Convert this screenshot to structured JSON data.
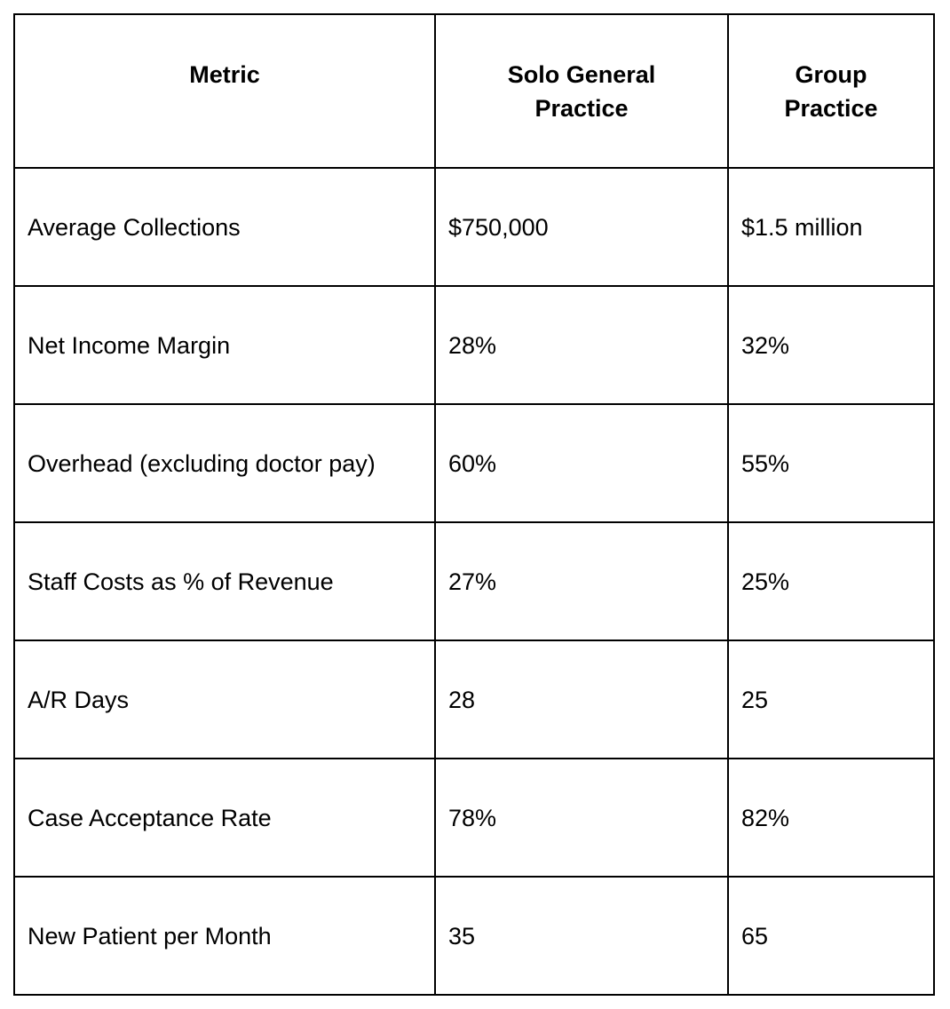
{
  "table": {
    "headers": [
      "Metric",
      "Solo General Practice",
      "Group Practice"
    ],
    "header_lines": [
      [
        "Metric"
      ],
      [
        "Solo General",
        "Practice"
      ],
      [
        "Group",
        "Practice"
      ]
    ],
    "rows": [
      [
        "Average Collections",
        "$750,000",
        "$1.5 million"
      ],
      [
        "Net Income Margin",
        "28%",
        "32%"
      ],
      [
        "Overhead (excluding doctor pay)",
        "60%",
        "55%"
      ],
      [
        "Staff Costs as % of Revenue",
        "27%",
        "25%"
      ],
      [
        "A/R Days",
        "28",
        "25"
      ],
      [
        "Case Acceptance Rate",
        "78%",
        "82%"
      ],
      [
        "New Patient per Month",
        "35",
        "65"
      ]
    ]
  }
}
